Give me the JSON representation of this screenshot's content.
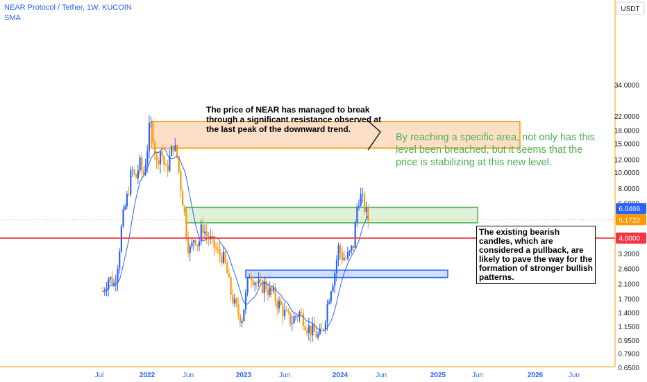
{
  "header": {
    "title": "NEAR Protocol / Tether, 1W, KUCOIN",
    "indicator": "SMA"
  },
  "annotations": {
    "note_breakout": "The price of NEAR has managed to break through a significant resistance observed at the last peak of the downward trend.",
    "note_stabilizing": "By reaching a specific area, not only has this level been breached, but it seems that the price is stabilizing at this new level.",
    "note_pullback": "The existing bearish candles, which are considered a pullback, are likely to pave the way for the formation of stronger bullish patterns."
  },
  "colors": {
    "bull": "#2962ff",
    "bear": "#ff9800",
    "sma": "#2962ff",
    "resistance_line": "#f23645",
    "zone_orange": "#fdd9bd",
    "zone_green": "#d8f0d4",
    "zone_blue": "#c9d8fb",
    "annotation_green": "#4caf50"
  },
  "chart_data": {
    "type": "candlestick",
    "timeframe": "1W",
    "y_scale": "log",
    "y_axis_label": "USDT",
    "y_ticks": [
      0.65,
      0.79,
      0.95,
      1.155,
      1.4,
      1.7,
      2.1,
      2.6,
      3.2,
      4.0,
      5.0,
      6.5,
      8.0,
      10.0,
      12.0,
      15.0,
      18.0,
      22.0,
      34.0
    ],
    "y_tick_labels": [
      "0.6500",
      "0.7900",
      "0.9500",
      "1.1500",
      "1.4000",
      "1.7000",
      "2.1000",
      "2.6000",
      "3.2000",
      "4.0000",
      "5.0000",
      "6.5000",
      "8.0000",
      "10.0000",
      "12.0000",
      "15.0000",
      "18.0000",
      "22.0000",
      "34.0000"
    ],
    "x_ticks": [
      "Jul",
      "2022",
      "Jun",
      "2023",
      "Jun",
      "2024",
      "Jun",
      "2025",
      "Jun",
      "2026",
      "Jun"
    ],
    "price_labels": [
      {
        "value": 6.0469,
        "text": "6.0469",
        "color": "#2962ff"
      },
      {
        "value": 5.1722,
        "text": "5.1722",
        "color": "#ff9800"
      },
      {
        "value": 4.0,
        "text": "4.0000",
        "color": "#f23645"
      }
    ],
    "horizontal_line": {
      "value": 4.0
    },
    "zones": [
      {
        "name": "resistance-zone",
        "color": "orange",
        "low": 14.1,
        "high": 20.5
      },
      {
        "name": "breakout-zone",
        "color": "green",
        "low": 4.95,
        "high": 6.15
      },
      {
        "name": "support-zone",
        "color": "blue",
        "low": 2.3,
        "high": 2.55
      }
    ],
    "close_path": [
      [
        2021.54,
        1.9
      ],
      [
        2021.6,
        2.3
      ],
      [
        2021.66,
        2.1
      ],
      [
        2021.7,
        3.0
      ],
      [
        2021.74,
        5.0
      ],
      [
        2021.8,
        7.5
      ],
      [
        2021.84,
        10.5
      ],
      [
        2021.88,
        9.0
      ],
      [
        2021.92,
        11.5
      ],
      [
        2021.96,
        9.5
      ],
      [
        2022.0,
        14.0
      ],
      [
        2022.03,
        20.5
      ],
      [
        2022.06,
        17.0
      ],
      [
        2022.1,
        11.0
      ],
      [
        2022.13,
        14.0
      ],
      [
        2022.16,
        12.5
      ],
      [
        2022.19,
        10.0
      ],
      [
        2022.23,
        12.0
      ],
      [
        2022.27,
        15.0
      ],
      [
        2022.31,
        12.5
      ],
      [
        2022.35,
        8.0
      ],
      [
        2022.38,
        6.0
      ],
      [
        2022.42,
        3.7
      ],
      [
        2022.45,
        3.3
      ],
      [
        2022.49,
        4.2
      ],
      [
        2022.53,
        3.6
      ],
      [
        2022.57,
        4.8
      ],
      [
        2022.61,
        4.2
      ],
      [
        2022.65,
        3.9
      ],
      [
        2022.7,
        3.5
      ],
      [
        2022.74,
        3.2
      ],
      [
        2022.78,
        3.1
      ],
      [
        2022.82,
        2.6
      ],
      [
        2022.86,
        1.9
      ],
      [
        2022.9,
        1.6
      ],
      [
        2022.94,
        1.4
      ],
      [
        2022.98,
        1.3
      ],
      [
        2023.02,
        1.75
      ],
      [
        2023.06,
        2.5
      ],
      [
        2023.1,
        2.3
      ],
      [
        2023.14,
        2.1
      ],
      [
        2023.18,
        2.0
      ],
      [
        2023.22,
        2.1
      ],
      [
        2023.26,
        1.9
      ],
      [
        2023.3,
        1.85
      ],
      [
        2023.34,
        1.65
      ],
      [
        2023.38,
        1.55
      ],
      [
        2023.42,
        1.4
      ],
      [
        2023.46,
        1.3
      ],
      [
        2023.5,
        1.25
      ],
      [
        2023.54,
        1.35
      ],
      [
        2023.58,
        1.4
      ],
      [
        2023.62,
        1.3
      ],
      [
        2023.66,
        1.15
      ],
      [
        2023.7,
        1.1
      ],
      [
        2023.74,
        1.05
      ],
      [
        2023.78,
        1.0
      ],
      [
        2023.82,
        1.1
      ],
      [
        2023.86,
        1.5
      ],
      [
        2023.9,
        2.0
      ],
      [
        2023.94,
        2.4
      ],
      [
        2023.98,
        3.5
      ],
      [
        2024.02,
        3.1
      ],
      [
        2024.06,
        3.0
      ],
      [
        2024.1,
        3.2
      ],
      [
        2024.14,
        3.7
      ],
      [
        2024.17,
        6.0
      ],
      [
        2024.2,
        7.3
      ],
      [
        2024.23,
        6.8
      ],
      [
        2024.26,
        5.9
      ],
      [
        2024.29,
        5.17
      ]
    ]
  }
}
